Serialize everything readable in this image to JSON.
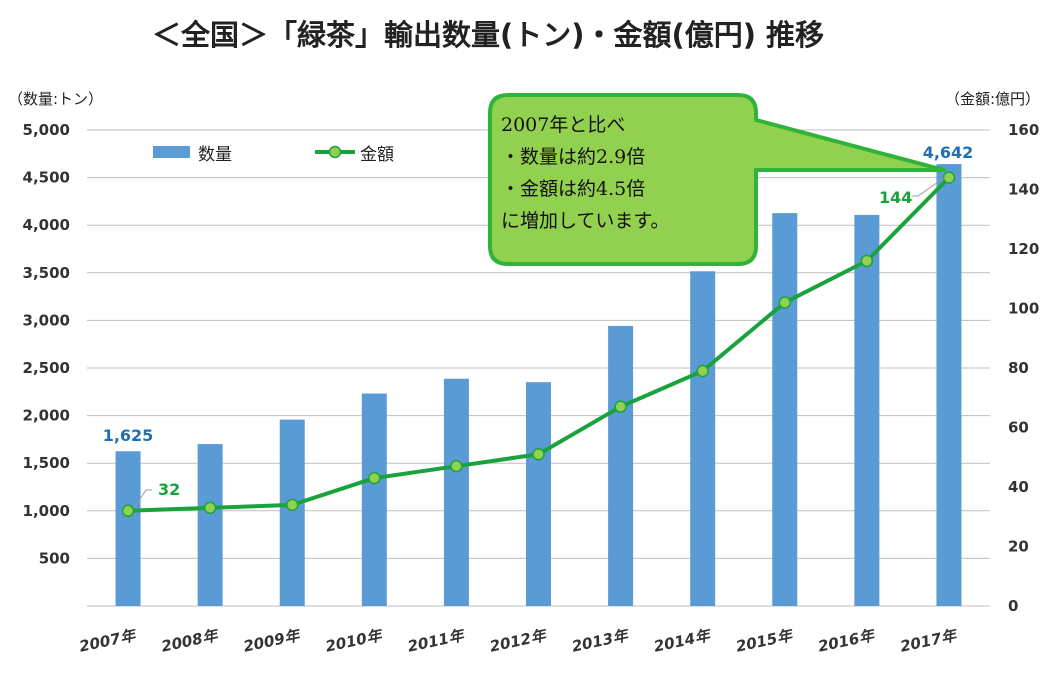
{
  "chart_data": {
    "type": "bar+line",
    "title": "＜全国＞「緑茶」輸出数量(トン)・金額(億円) 推移",
    "ylabel_left": "（数量:トン）",
    "ylabel_right": "（金額:億円）",
    "categories": [
      "2007年",
      "2008年",
      "2009年",
      "2010年",
      "2011年",
      "2012年",
      "2013年",
      "2014年",
      "2015年",
      "2016年",
      "2017年"
    ],
    "series": [
      {
        "name": "数量",
        "type": "bar",
        "axis": "left",
        "color": "#5b9bd5",
        "values": [
          1625,
          1701,
          1958,
          2232,
          2387,
          2351,
          2942,
          3516,
          4127,
          4108,
          4642
        ]
      },
      {
        "name": "金額",
        "type": "line",
        "axis": "right",
        "color": "#1aa33d",
        "marker_fill": "#92d050",
        "values": [
          32,
          33,
          34,
          43,
          47,
          51,
          67,
          79,
          102,
          116,
          144
        ]
      }
    ],
    "ylim_left": [
      0,
      5000
    ],
    "yticks_left": [
      "500",
      "1,000",
      "1,500",
      "2,000",
      "2,500",
      "3,000",
      "3,500",
      "4,000",
      "4,500",
      "5,000"
    ],
    "ylim_right": [
      0,
      160
    ],
    "yticks_right": [
      "0",
      "20",
      "40",
      "60",
      "80",
      "100",
      "120",
      "140",
      "160"
    ],
    "grid": true,
    "legend_position": "top-left",
    "data_labels": {
      "bar_first": "1,625",
      "bar_last": "4,642",
      "line_first": "32",
      "line_last": "144"
    },
    "annotation": {
      "lines": [
        "2007年と比べ",
        "・数量は約2.9倍",
        "・金額は約4.5倍",
        "に増加しています。"
      ],
      "fill": "#92d050",
      "stroke": "#2fb33a"
    }
  }
}
